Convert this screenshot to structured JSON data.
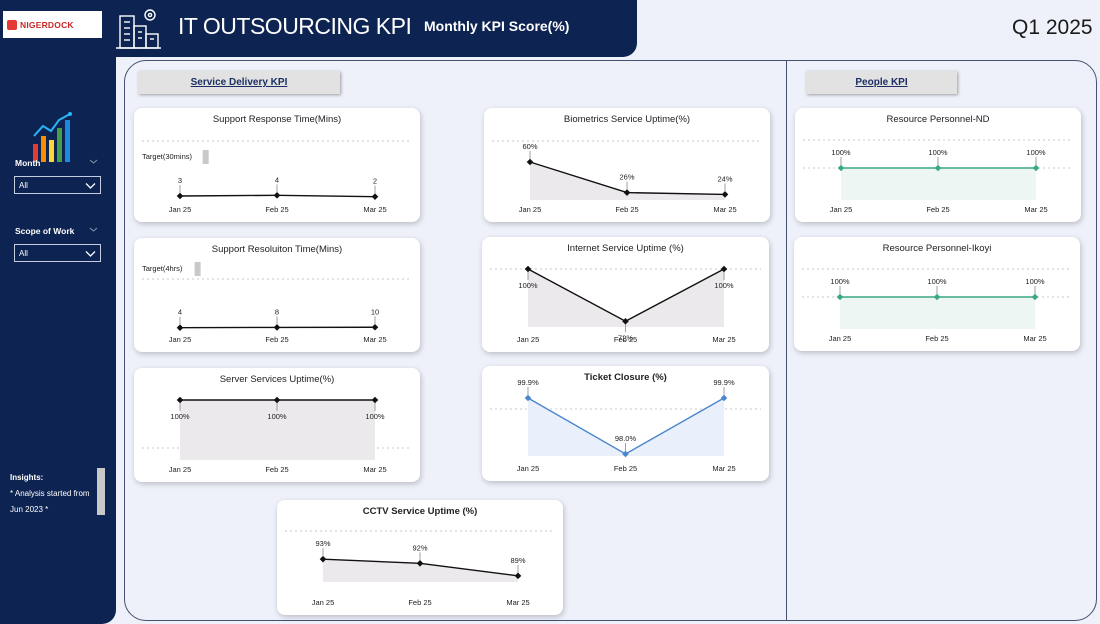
{
  "header": {
    "logo_text": "NIGERDOCK",
    "title": "IT OUTSOURCING KPI",
    "subtitle": "Monthly KPI Score(%)",
    "quarter": "Q1 2025"
  },
  "sidebar": {
    "filters": [
      {
        "label": "Month",
        "value": "All"
      },
      {
        "label": "Scope of Work",
        "value": "All"
      }
    ],
    "insights_title": "Insights:",
    "insights_text": "* Analysis started from Jun 2023 *"
  },
  "sections": {
    "service_delivery": "Service Delivery KPI",
    "people": "People KPI"
  },
  "colors": {
    "navy": "#0d2351",
    "line_black": "#111111",
    "line_blue": "#4a86cc",
    "line_green": "#3aa982",
    "area_grey": "#ece9ec",
    "area_blue": "#eaf0fb",
    "area_green": "#eef6f3"
  },
  "chart_data": [
    {
      "id": "support_response",
      "type": "line",
      "title": "Support Response Time(Mins)",
      "categories": [
        "Jan 25",
        "Feb 25",
        "Mar 25"
      ],
      "values": [
        3,
        4,
        2
      ],
      "labels": [
        "3",
        "4",
        "2"
      ],
      "target_label": "Target(30mins)"
    },
    {
      "id": "support_resolution",
      "type": "line",
      "title": "Support Resoluiton Time(Mins)",
      "categories": [
        "Jan 25",
        "Feb 25",
        "Mar 25"
      ],
      "values": [
        4,
        8,
        10
      ],
      "labels": [
        "4",
        "8",
        "10"
      ],
      "target_label": "Target(4hrs)"
    },
    {
      "id": "server_uptime",
      "type": "area",
      "title": "Server Services Uptime(%)",
      "categories": [
        "Jan 25",
        "Feb 25",
        "Mar 25"
      ],
      "values": [
        100,
        100,
        100
      ],
      "labels": [
        "100%",
        "100%",
        "100%"
      ]
    },
    {
      "id": "biometrics_uptime",
      "type": "area",
      "title": "Biometrics Service Uptime(%)",
      "categories": [
        "Jan 25",
        "Feb 25",
        "Mar 25"
      ],
      "values": [
        60,
        26,
        24
      ],
      "labels": [
        "60%",
        "26%",
        "24%"
      ]
    },
    {
      "id": "internet_uptime",
      "type": "area",
      "title": "Internet Service Uptime (%)",
      "categories": [
        "Jan 25",
        "Feb 25",
        "Mar 25"
      ],
      "values": [
        100,
        72,
        100
      ],
      "labels": [
        "100%",
        "72%",
        "100%"
      ]
    },
    {
      "id": "ticket_closure",
      "type": "area",
      "title": "Ticket Closure (%)",
      "categories": [
        "Jan 25",
        "Feb 25",
        "Mar 25"
      ],
      "values": [
        99.9,
        98.0,
        99.9
      ],
      "labels": [
        "99.9%",
        "98.0%",
        "99.9%"
      ]
    },
    {
      "id": "cctv_uptime",
      "type": "area",
      "title": "CCTV Service Uptime (%)",
      "categories": [
        "Jan 25",
        "Feb 25",
        "Mar 25"
      ],
      "values": [
        93,
        92,
        89
      ],
      "labels": [
        "93%",
        "92%",
        "89%"
      ]
    },
    {
      "id": "personnel_nd",
      "type": "area",
      "title": "Resource Personnel-ND",
      "categories": [
        "Jan 25",
        "Feb 25",
        "Mar 25"
      ],
      "values": [
        100,
        100,
        100
      ],
      "labels": [
        "100%",
        "100%",
        "100%"
      ]
    },
    {
      "id": "personnel_ikoyi",
      "type": "area",
      "title": "Resource Personnel-Ikoyi",
      "categories": [
        "Jan 25",
        "Feb 25",
        "Mar 25"
      ],
      "values": [
        100,
        100,
        100
      ],
      "labels": [
        "100%",
        "100%",
        "100%"
      ]
    }
  ]
}
